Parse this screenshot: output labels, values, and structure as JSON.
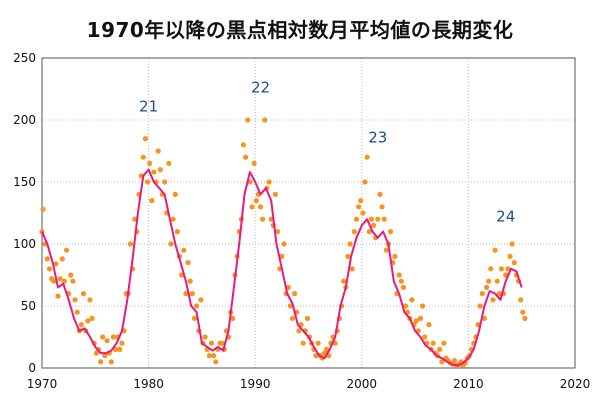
{
  "chart_data": {
    "type": "scatter",
    "title": "1970年以降の黒点相対数月平均値の長期変化",
    "xlabel": "",
    "ylabel": "",
    "xlim": [
      1970,
      2020
    ],
    "ylim": [
      0,
      250
    ],
    "x_ticks": [
      1970,
      1980,
      1990,
      2000,
      2010,
      2020
    ],
    "y_ticks": [
      0,
      50,
      100,
      150,
      200,
      250
    ],
    "grid": true,
    "legend": "none",
    "colors": {
      "monthly_points": "#f7941d",
      "smoothed_line": "#e8197f",
      "cycle_labels": "#1f4e8c",
      "grid": "#bbbbbb"
    },
    "series": [
      {
        "kind": "points",
        "x": [
          1970.0,
          1970.1,
          1970.3,
          1970.5,
          1970.7,
          1970.9,
          1971.1,
          1971.3,
          1971.5,
          1971.7,
          1971.9,
          1972.1,
          1972.3,
          1972.5,
          1972.7,
          1972.9,
          1973.1,
          1973.3,
          1973.5,
          1973.7,
          1973.9,
          1974.1,
          1974.3,
          1974.5,
          1974.7,
          1974.9,
          1975.1,
          1975.3,
          1975.5,
          1975.7,
          1975.9,
          1976.1,
          1976.3,
          1976.5,
          1976.7,
          1976.9,
          1977.1,
          1977.3,
          1977.5,
          1977.7,
          1977.9,
          1978.1,
          1978.3,
          1978.5,
          1978.7,
          1978.9,
          1979.1,
          1979.3,
          1979.5,
          1979.7,
          1979.9,
          1980.1,
          1980.3,
          1980.5,
          1980.7,
          1980.9,
          1981.1,
          1981.3,
          1981.5,
          1981.7,
          1981.9,
          1982.1,
          1982.3,
          1982.5,
          1982.7,
          1982.9,
          1983.1,
          1983.3,
          1983.5,
          1983.7,
          1983.9,
          1984.1,
          1984.3,
          1984.5,
          1984.7,
          1984.9,
          1985.1,
          1985.3,
          1985.5,
          1985.7,
          1985.9,
          1986.1,
          1986.3,
          1986.5,
          1986.7,
          1986.9,
          1987.1,
          1987.3,
          1987.5,
          1987.7,
          1987.9,
          1988.1,
          1988.3,
          1988.5,
          1988.7,
          1988.9,
          1989.1,
          1989.3,
          1989.5,
          1989.7,
          1989.9,
          1990.1,
          1990.3,
          1990.5,
          1990.7,
          1990.9,
          1991.1,
          1991.3,
          1991.5,
          1991.7,
          1991.9,
          1992.1,
          1992.3,
          1992.5,
          1992.7,
          1992.9,
          1993.1,
          1993.3,
          1993.5,
          1993.7,
          1993.9,
          1994.1,
          1994.3,
          1994.5,
          1994.7,
          1994.9,
          1995.1,
          1995.3,
          1995.5,
          1995.7,
          1995.9,
          1996.1,
          1996.3,
          1996.5,
          1996.7,
          1996.9,
          1997.1,
          1997.3,
          1997.5,
          1997.7,
          1997.9,
          1998.1,
          1998.3,
          1998.5,
          1998.7,
          1998.9,
          1999.1,
          1999.3,
          1999.5,
          1999.7,
          1999.9,
          2000.1,
          2000.3,
          2000.5,
          2000.7,
          2000.9,
          2001.1,
          2001.3,
          2001.5,
          2001.7,
          2001.9,
          2002.1,
          2002.3,
          2002.5,
          2002.7,
          2002.9,
          2003.1,
          2003.3,
          2003.5,
          2003.7,
          2003.9,
          2004.1,
          2004.3,
          2004.5,
          2004.7,
          2004.9,
          2005.1,
          2005.3,
          2005.5,
          2005.7,
          2005.9,
          2006.1,
          2006.3,
          2006.5,
          2006.7,
          2006.9,
          2007.1,
          2007.3,
          2007.5,
          2007.7,
          2007.9,
          2008.1,
          2008.3,
          2008.5,
          2008.7,
          2008.9,
          2009.1,
          2009.3,
          2009.5,
          2009.7,
          2009.9,
          2010.1,
          2010.3,
          2010.5,
          2010.7,
          2010.9,
          2011.1,
          2011.3,
          2011.5,
          2011.7,
          2011.9,
          2012.1,
          2012.3,
          2012.5,
          2012.7,
          2012.9,
          2013.1,
          2013.3,
          2013.5,
          2013.7,
          2013.9,
          2014.1,
          2014.3,
          2014.5,
          2014.7,
          2014.9,
          2015.1,
          2015.3
        ],
        "y": [
          110,
          128,
          100,
          88,
          80,
          72,
          70,
          84,
          58,
          72,
          88,
          70,
          95,
          60,
          75,
          70,
          55,
          45,
          30,
          35,
          60,
          30,
          38,
          55,
          40,
          20,
          12,
          15,
          5,
          25,
          10,
          22,
          12,
          5,
          25,
          15,
          25,
          15,
          20,
          30,
          60,
          60,
          100,
          80,
          120,
          110,
          140,
          155,
          170,
          185,
          150,
          165,
          135,
          158,
          150,
          175,
          160,
          140,
          150,
          125,
          165,
          100,
          120,
          140,
          110,
          90,
          75,
          95,
          60,
          85,
          70,
          60,
          40,
          50,
          30,
          55,
          20,
          25,
          15,
          10,
          20,
          10,
          5,
          15,
          20,
          20,
          15,
          30,
          25,
          45,
          40,
          75,
          90,
          110,
          120,
          180,
          170,
          200,
          150,
          130,
          165,
          135,
          140,
          130,
          120,
          200,
          145,
          150,
          120,
          115,
          140,
          110,
          80,
          90,
          100,
          60,
          65,
          50,
          40,
          60,
          45,
          30,
          35,
          20,
          30,
          40,
          25,
          20,
          15,
          10,
          20,
          10,
          8,
          12,
          15,
          10,
          20,
          25,
          20,
          30,
          40,
          50,
          70,
          65,
          90,
          100,
          80,
          110,
          120,
          130,
          135,
          125,
          150,
          170,
          110,
          120,
          115,
          105,
          120,
          140,
          130,
          120,
          95,
          100,
          110,
          85,
          90,
          60,
          75,
          70,
          65,
          50,
          45,
          40,
          55,
          35,
          38,
          30,
          40,
          50,
          25,
          20,
          35,
          15,
          20,
          12,
          10,
          15,
          5,
          20,
          8,
          6,
          4,
          3,
          6,
          2,
          3,
          5,
          2,
          4,
          8,
          10,
          15,
          20,
          25,
          35,
          50,
          60,
          40,
          65,
          70,
          80,
          55,
          95,
          70,
          60,
          80,
          60,
          75,
          80,
          90,
          100,
          85,
          75,
          70,
          55,
          45,
          40
        ]
      },
      {
        "kind": "line",
        "x": [
          1970.0,
          1970.5,
          1971.0,
          1971.5,
          1972.0,
          1972.5,
          1973.0,
          1973.5,
          1974.0,
          1974.5,
          1975.0,
          1975.5,
          1976.0,
          1976.5,
          1977.0,
          1977.5,
          1978.0,
          1978.5,
          1979.0,
          1979.5,
          1980.0,
          1980.5,
          1981.0,
          1981.5,
          1982.0,
          1982.5,
          1983.0,
          1983.5,
          1984.0,
          1984.5,
          1985.0,
          1985.5,
          1986.0,
          1986.5,
          1987.0,
          1987.5,
          1988.0,
          1988.5,
          1989.0,
          1989.5,
          1990.0,
          1990.5,
          1991.0,
          1991.5,
          1992.0,
          1992.5,
          1993.0,
          1993.5,
          1994.0,
          1994.5,
          1995.0,
          1995.5,
          1996.0,
          1996.5,
          1997.0,
          1997.5,
          1998.0,
          1998.5,
          1999.0,
          1999.5,
          2000.0,
          2000.5,
          2001.0,
          2001.5,
          2002.0,
          2002.5,
          2003.0,
          2003.5,
          2004.0,
          2004.5,
          2005.0,
          2005.5,
          2006.0,
          2006.5,
          2007.0,
          2007.5,
          2008.0,
          2008.5,
          2009.0,
          2009.5,
          2010.0,
          2010.5,
          2011.0,
          2011.5,
          2012.0,
          2012.5,
          2013.0,
          2013.5,
          2014.0,
          2014.5,
          2015.0
        ],
        "y": [
          110,
          100,
          85,
          65,
          68,
          55,
          40,
          30,
          32,
          25,
          17,
          12,
          12,
          14,
          20,
          30,
          55,
          88,
          125,
          155,
          160,
          150,
          145,
          140,
          120,
          100,
          85,
          70,
          50,
          45,
          20,
          17,
          14,
          17,
          14,
          30,
          65,
          100,
          140,
          158,
          150,
          140,
          145,
          135,
          100,
          80,
          60,
          52,
          35,
          30,
          25,
          17,
          10,
          8,
          15,
          25,
          50,
          65,
          90,
          105,
          115,
          120,
          110,
          105,
          110,
          100,
          70,
          60,
          45,
          40,
          30,
          25,
          18,
          15,
          10,
          8,
          5,
          3,
          2,
          4,
          8,
          15,
          30,
          50,
          62,
          60,
          55,
          70,
          80,
          78,
          65
        ]
      }
    ],
    "annotations": [
      {
        "text": "21",
        "x": 1980,
        "y": 207
      },
      {
        "text": "22",
        "x": 1990.5,
        "y": 222
      },
      {
        "text": "23",
        "x": 2001.5,
        "y": 182
      },
      {
        "text": "24",
        "x": 2013.5,
        "y": 118
      }
    ]
  }
}
